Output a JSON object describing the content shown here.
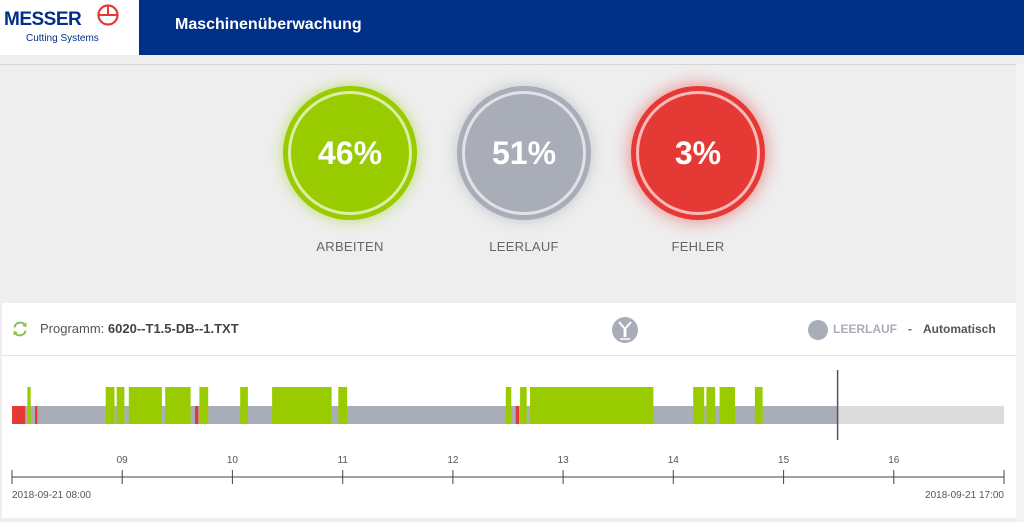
{
  "header": {
    "logo_text": "MESSER",
    "logo_subtext": "Cutting Systems",
    "title": "Maschinenüberwachung"
  },
  "gauges": [
    {
      "value": "46%",
      "label": "ARBEITEN",
      "color": "#99cc00"
    },
    {
      "value": "51%",
      "label": "LEERLAUF",
      "color": "#a9adb8"
    },
    {
      "value": "3%",
      "label": "FEHLER",
      "color": "#e53935"
    }
  ],
  "program": {
    "prefix": "Programm:",
    "name": "6020--T1.5-DB--1.TXT",
    "refresh_icon": "refresh-icon",
    "tool_icon": "cutting-torch-icon"
  },
  "status": {
    "state": "LEERLAUF",
    "separator": "-",
    "mode": "Automatisch",
    "color": "#a9adb8"
  },
  "timeline": {
    "start_label": "2018-09-21 08:00",
    "end_label": "2018-09-21 17:00",
    "start_hour": 8,
    "end_hour": 17,
    "current_hour": 15.49,
    "tick_labels": [
      "09",
      "10",
      "11",
      "12",
      "13",
      "14",
      "15",
      "16"
    ],
    "colors": {
      "working": "#99cc00",
      "idle": "#a9adb8",
      "error": "#e53935",
      "future": "#dcdcdc"
    },
    "segments": [
      {
        "state": "error",
        "start": 8.0,
        "end": 8.12
      },
      {
        "state": "working",
        "start": 8.14,
        "end": 8.17
      },
      {
        "state": "error",
        "start": 8.21,
        "end": 8.23
      },
      {
        "state": "working",
        "start": 8.85,
        "end": 8.93
      },
      {
        "state": "working",
        "start": 8.95,
        "end": 9.02
      },
      {
        "state": "working",
        "start": 9.06,
        "end": 9.36
      },
      {
        "state": "working",
        "start": 9.39,
        "end": 9.62
      },
      {
        "state": "error",
        "start": 9.66,
        "end": 9.69
      },
      {
        "state": "working",
        "start": 9.7,
        "end": 9.78
      },
      {
        "state": "working",
        "start": 10.07,
        "end": 10.14
      },
      {
        "state": "working",
        "start": 10.36,
        "end": 10.9
      },
      {
        "state": "working",
        "start": 10.96,
        "end": 11.04
      },
      {
        "state": "working",
        "start": 12.48,
        "end": 12.53
      },
      {
        "state": "error",
        "start": 12.57,
        "end": 12.6
      },
      {
        "state": "working",
        "start": 12.61,
        "end": 12.67
      },
      {
        "state": "working",
        "start": 12.7,
        "end": 13.82
      },
      {
        "state": "working",
        "start": 14.18,
        "end": 14.28
      },
      {
        "state": "working",
        "start": 14.3,
        "end": 14.38
      },
      {
        "state": "working",
        "start": 14.42,
        "end": 14.56
      },
      {
        "state": "working",
        "start": 14.74,
        "end": 14.81
      }
    ]
  }
}
